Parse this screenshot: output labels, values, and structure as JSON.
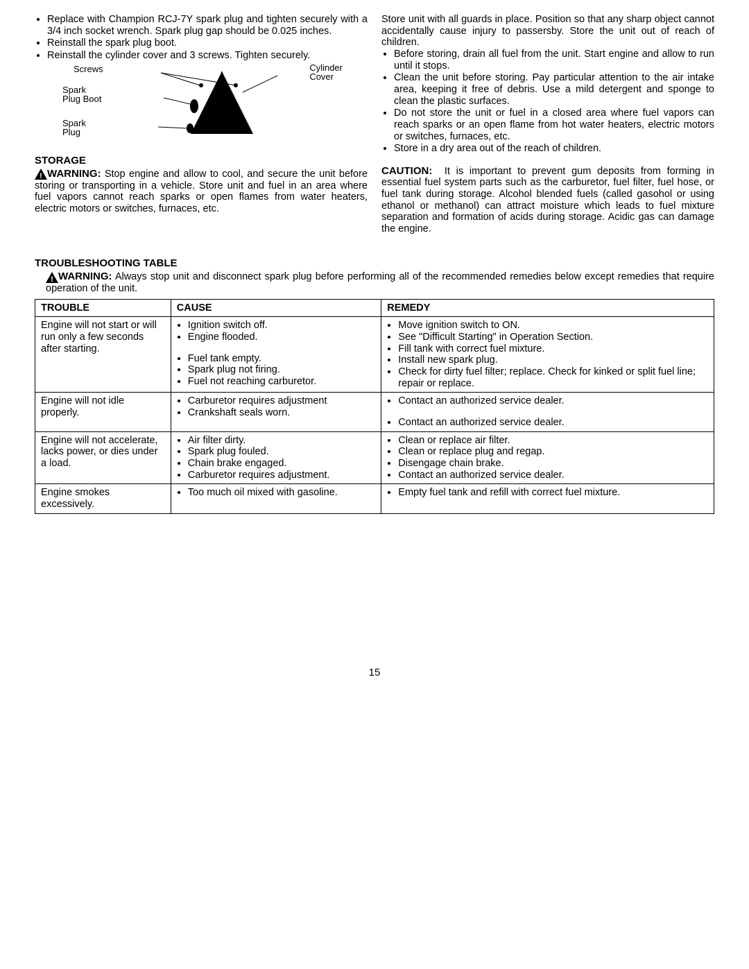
{
  "left": {
    "bullets": [
      "Replace with Champion RCJ-7Y spark plug and tighten securely with a 3/4 inch socket wrench. Spark plug gap should be 0.025 inches.",
      "Reinstall the spark plug boot.",
      "Reinstall the cylinder cover and 3 screws. Tighten securely."
    ],
    "diagram": {
      "screws": "Screws",
      "cylinder_cover": "Cylinder Cover",
      "spark_plug_boot": "Spark Plug Boot",
      "spark_plug": "Spark Plug"
    },
    "storage_head": "STORAGE",
    "warning_label": "WARNING:",
    "warning_text": "Stop engine and allow to cool, and secure the unit before storing or transporting in a vehicle. Store unit and fuel in an area where fuel vapors cannot reach sparks or open flames from water heaters, electric motors or switches, furnaces, etc."
  },
  "right": {
    "intro": "Store unit with all guards in place. Position so that any sharp object cannot accidentally cause injury to passersby. Store the unit out of reach of children.",
    "bullets": [
      "Before storing, drain all fuel from the unit. Start engine and allow to run until it stops.",
      "Clean the unit before storing. Pay particular attention to the air intake area, keeping it free of debris. Use a mild detergent and sponge to clean the plastic surfaces.",
      "Do not store the unit or fuel in a closed area where fuel vapors can reach sparks or an open flame from hot water heaters, electric motors or switches, furnaces, etc.",
      "Store in a dry area out of the reach of children."
    ],
    "caution_label": "CAUTION:",
    "caution_text": "It is important to prevent gum deposits from forming in essential fuel system parts such as the carburetor, fuel filter, fuel hose, or fuel tank during storage. Alcohol blended fuels (called gasohol or using ethanol or methanol) can attract moisture which leads to fuel mixture separation and formation of acids during storage. Acidic gas can damage the engine."
  },
  "troubleshoot_head": "TROUBLESHOOTING TABLE",
  "troubleshoot_warning_label": "WARNING:",
  "troubleshoot_warning_text": "Always stop unit and disconnect spark plug before performing all of the recommended remedies below except remedies that require operation of the unit.",
  "table": {
    "headers": {
      "trouble": "TROUBLE",
      "cause": "CAUSE",
      "remedy": "REMEDY"
    },
    "rows": [
      {
        "trouble": "Engine will not start or will run only a few seconds after starting.",
        "causes": [
          "Ignition switch off.",
          "Engine flooded.",
          "",
          "Fuel tank empty.",
          "Spark plug not firing.",
          "Fuel not reaching carburetor."
        ],
        "remedies": [
          "Move ignition switch to ON.",
          "See \"Difficult Starting\" in Operation Section.",
          "Fill tank with correct fuel mixture.",
          "Install new spark plug.",
          "Check for dirty fuel filter; replace. Check for kinked or split fuel line; repair or replace."
        ]
      },
      {
        "trouble": "Engine will not idle properly.",
        "causes": [
          "Carburetor requires adjustment",
          "Crankshaft seals worn."
        ],
        "remedies": [
          "Contact an authorized service dealer.",
          "",
          "Contact an authorized service dealer."
        ]
      },
      {
        "trouble": "Engine will not accelerate, lacks power, or dies under a load.",
        "causes": [
          "Air filter dirty.",
          "Spark plug fouled.",
          "Chain brake engaged.",
          "Carburetor requires adjustment."
        ],
        "remedies": [
          "Clean or replace air filter.",
          "Clean or replace plug and regap.",
          "Disengage chain brake.",
          "Contact an authorized service dealer."
        ]
      },
      {
        "trouble": "Engine smokes excessively.",
        "causes": [
          "Too much oil mixed with gasoline."
        ],
        "remedies": [
          "Empty fuel tank and refill with correct fuel mixture."
        ]
      }
    ]
  },
  "page_number": "15",
  "colors": {
    "text": "#000000",
    "background": "#ffffff",
    "border": "#000000"
  }
}
